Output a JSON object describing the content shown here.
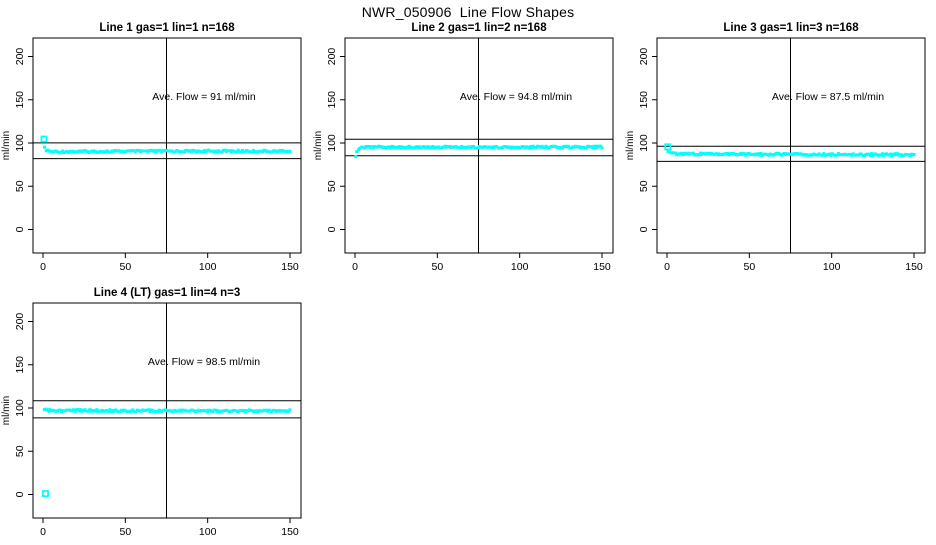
{
  "title": "NWR_050906  Line Flow Shapes",
  "chart_data": {
    "type": "scatter",
    "layout": "grid 2 rows x 3 cols, 4 panels used",
    "grid": false,
    "marker_color": "#00ffff",
    "axis_color": "#000000",
    "x_ticks": [
      0,
      50,
      100,
      150
    ],
    "y_ticks": [
      0,
      50,
      100,
      150,
      200
    ],
    "xlim": [
      -6,
      156
    ],
    "ylim": [
      -27,
      221
    ],
    "ylabel": "ml/min",
    "vline_x": 75,
    "markers_per_plot": 170,
    "plots": [
      {
        "title": "Line 1 gas=1 lin=1 n=168",
        "annotation": "Ave. Flow =  91  ml/min",
        "ave_flow": 91,
        "n": 168,
        "ref_lines": [
          100.1,
          81.9
        ],
        "profile": [
          [
            1.2,
            94
          ],
          [
            2.5,
            91
          ],
          [
            6,
            90
          ],
          [
            75,
            90.5
          ],
          [
            150,
            90.5
          ]
        ],
        "outliers": [
          [
            0.6,
            104.5
          ]
        ]
      },
      {
        "title": "Line 2 gas=1 lin=2 n=168",
        "annotation": "Ave. Flow =  94.8  ml/min",
        "ave_flow": 94.8,
        "n": 168,
        "ref_lines": [
          104.3,
          85.3
        ],
        "profile": [
          [
            0.4,
            85.5
          ],
          [
            0.9,
            88
          ],
          [
            1.8,
            91.5
          ],
          [
            3.5,
            94
          ],
          [
            7,
            95.2
          ],
          [
            150,
            95.2
          ]
        ],
        "outliers": []
      },
      {
        "title": "Line 3 gas=1 lin=3 n=168",
        "annotation": "Ave. Flow =  87.5  ml/min",
        "ave_flow": 87.5,
        "n": 168,
        "ref_lines": [
          96.25,
          78.75
        ],
        "profile": [
          [
            0.8,
            90
          ],
          [
            2.2,
            87.5
          ],
          [
            40,
            87
          ],
          [
            150,
            86.5
          ]
        ],
        "outliers": [
          [
            0.5,
            95.5
          ]
        ]
      },
      {
        "title": "Line 4 (LT) gas=1 lin=4 n=3",
        "annotation": "Ave. Flow =  98.5  ml/min",
        "ave_flow": 98.5,
        "n": 3,
        "ref_lines": [
          108.35,
          88.65
        ],
        "profile": [
          [
            0.8,
            98.5
          ],
          [
            3,
            97.2
          ],
          [
            80,
            96.8
          ],
          [
            150,
            96.8
          ]
        ],
        "outliers": [
          [
            1.5,
            1
          ]
        ]
      }
    ]
  }
}
